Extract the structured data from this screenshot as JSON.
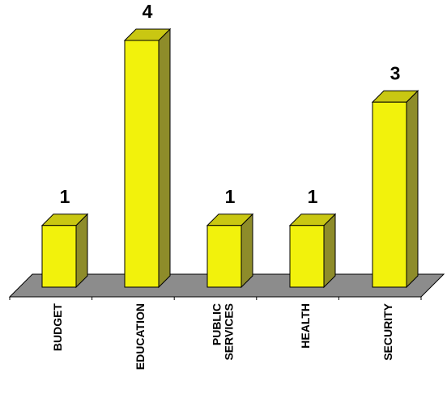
{
  "chart_data": {
    "type": "bar",
    "style": "3d-column",
    "categories": [
      [
        "BUDGET"
      ],
      [
        "EDUCATION"
      ],
      [
        "PUBLIC",
        "SERVICES"
      ],
      [
        "HEALTH"
      ],
      [
        "SECURITY"
      ]
    ],
    "values": [
      1,
      4,
      1,
      1,
      3
    ],
    "data_labels": [
      "1",
      "4",
      "1",
      "1",
      "3"
    ],
    "ylim": [
      0,
      4
    ],
    "grid": false,
    "legend": "none",
    "colors": {
      "bar_front": "#f2f20c",
      "bar_side": "#8e8c2a",
      "bar_top": "#c9c712",
      "floor": "#8c8c8c",
      "outline": "#000000"
    }
  }
}
